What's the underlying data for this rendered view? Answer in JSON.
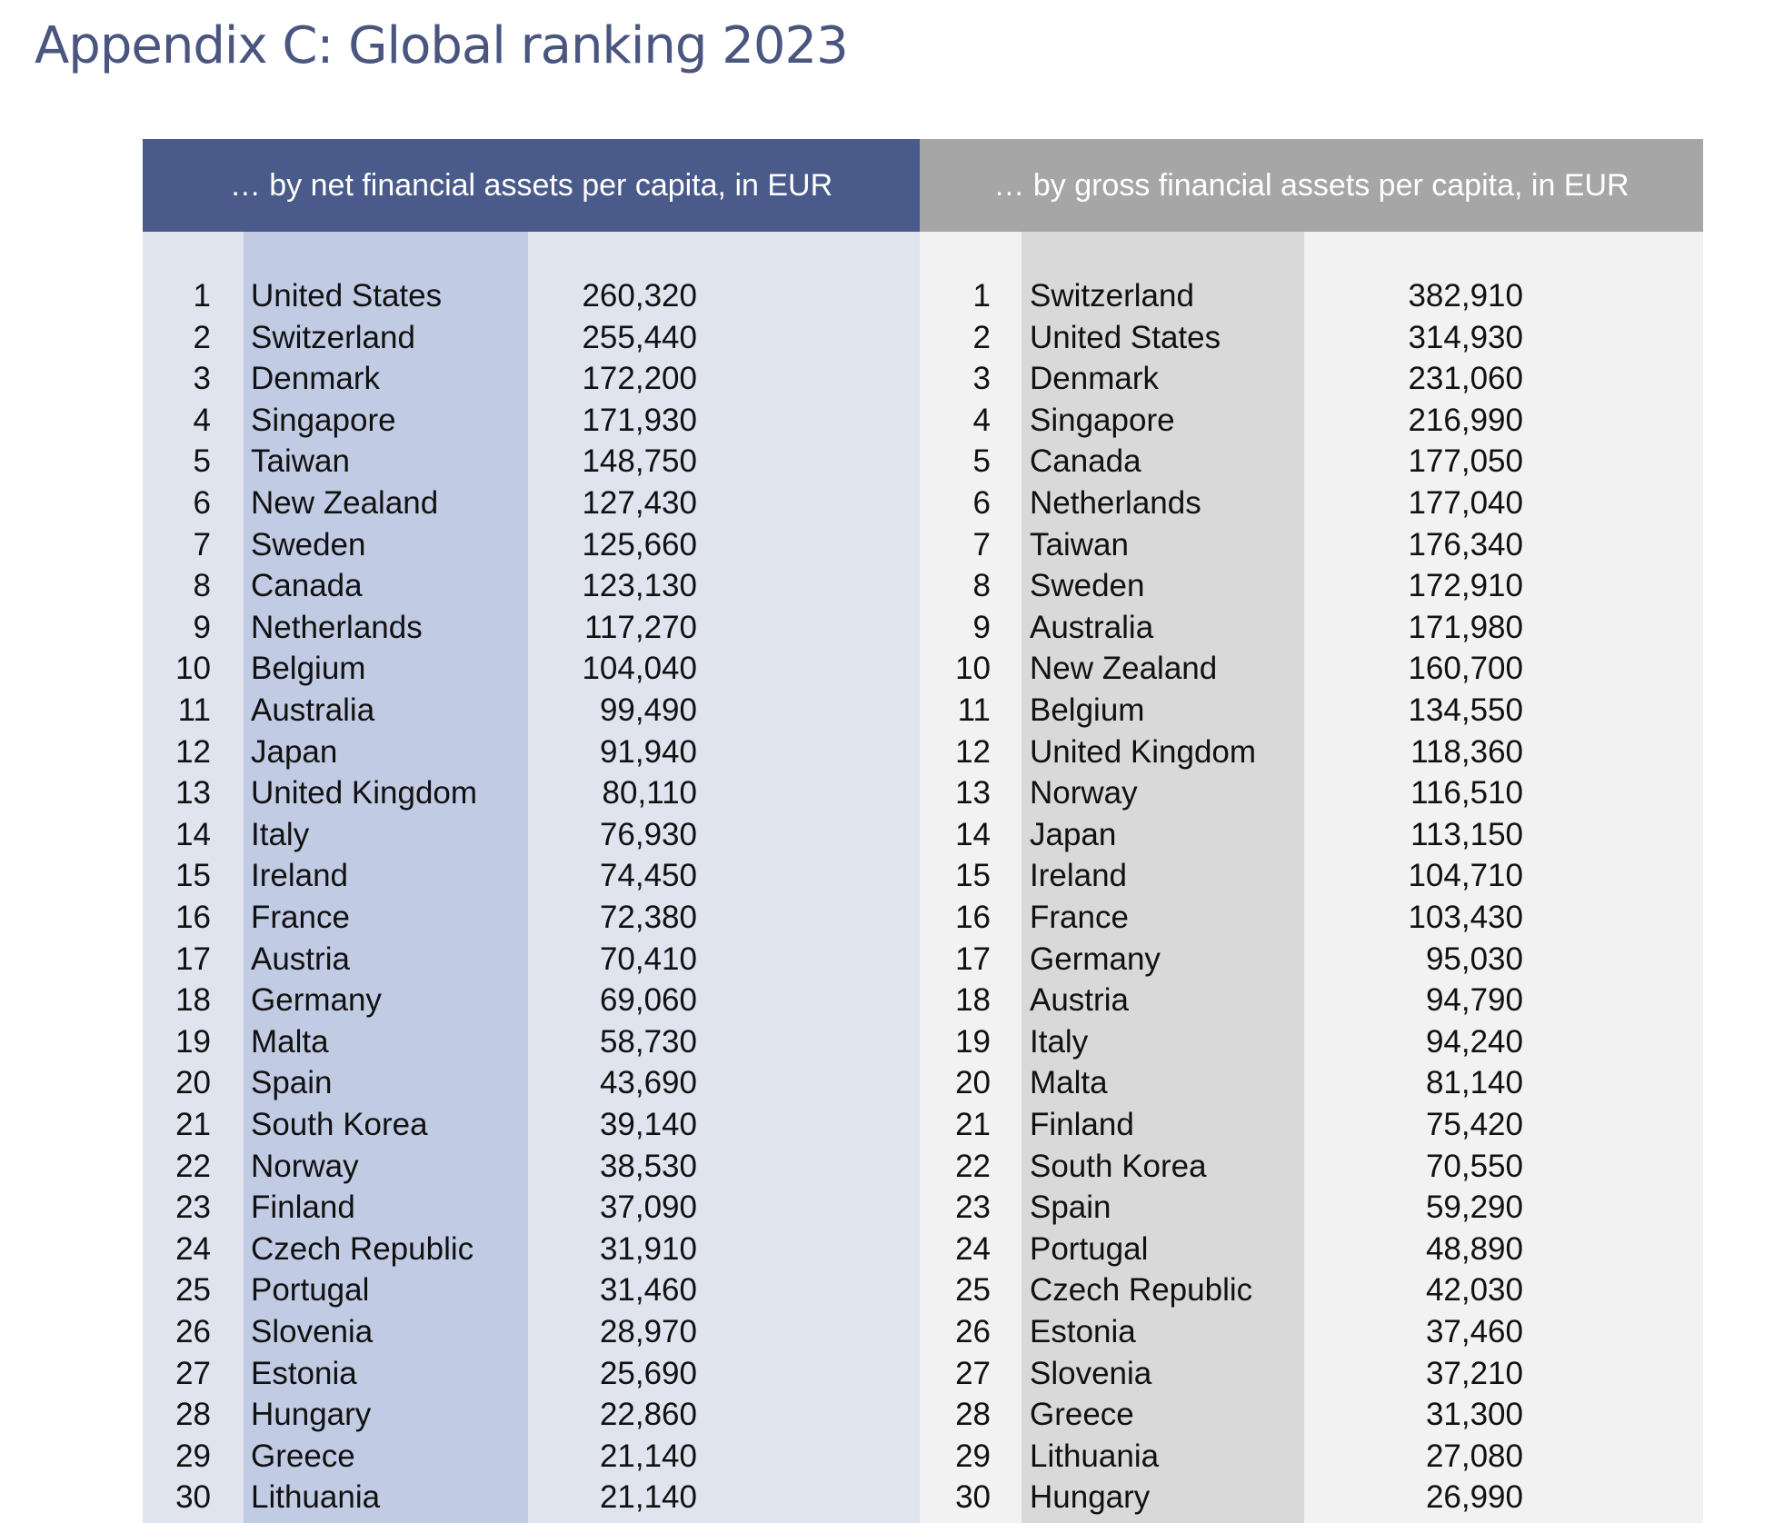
{
  "title": "Appendix C: Global ranking 2023",
  "tables": [
    {
      "header": "… by net financial assets per capita, in EUR",
      "rows": [
        [
          1,
          "United States",
          "260,320"
        ],
        [
          2,
          "Switzerland",
          "255,440"
        ],
        [
          3,
          "Denmark",
          "172,200"
        ],
        [
          4,
          "Singapore",
          "171,930"
        ],
        [
          5,
          "Taiwan",
          "148,750"
        ],
        [
          6,
          "New Zealand",
          "127,430"
        ],
        [
          7,
          "Sweden",
          "125,660"
        ],
        [
          8,
          "Canada",
          "123,130"
        ],
        [
          9,
          "Netherlands",
          "117,270"
        ],
        [
          10,
          "Belgium",
          "104,040"
        ],
        [
          11,
          "Australia",
          "99,490"
        ],
        [
          12,
          "Japan",
          "91,940"
        ],
        [
          13,
          "United Kingdom",
          "80,110"
        ],
        [
          14,
          "Italy",
          "76,930"
        ],
        [
          15,
          "Ireland",
          "74,450"
        ],
        [
          16,
          "France",
          "72,380"
        ],
        [
          17,
          "Austria",
          "70,410"
        ],
        [
          18,
          "Germany",
          "69,060"
        ],
        [
          19,
          "Malta",
          "58,730"
        ],
        [
          20,
          "Spain",
          "43,690"
        ],
        [
          21,
          "South Korea",
          "39,140"
        ],
        [
          22,
          "Norway",
          "38,530"
        ],
        [
          23,
          "Finland",
          "37,090"
        ],
        [
          24,
          "Czech Republic",
          "31,910"
        ],
        [
          25,
          "Portugal",
          "31,460"
        ],
        [
          26,
          "Slovenia",
          "28,970"
        ],
        [
          27,
          "Estonia",
          "25,690"
        ],
        [
          28,
          "Hungary",
          "22,860"
        ],
        [
          29,
          "Greece",
          "21,140"
        ],
        [
          30,
          "Lithuania",
          "21,140"
        ]
      ]
    },
    {
      "header": "… by gross financial assets per capita, in EUR",
      "rows": [
        [
          1,
          "Switzerland",
          "382,910"
        ],
        [
          2,
          "United States",
          "314,930"
        ],
        [
          3,
          "Denmark",
          "231,060"
        ],
        [
          4,
          "Singapore",
          "216,990"
        ],
        [
          5,
          "Canada",
          "177,050"
        ],
        [
          6,
          "Netherlands",
          "177,040"
        ],
        [
          7,
          "Taiwan",
          "176,340"
        ],
        [
          8,
          "Sweden",
          "172,910"
        ],
        [
          9,
          "Australia",
          "171,980"
        ],
        [
          10,
          "New Zealand",
          "160,700"
        ],
        [
          11,
          "Belgium",
          "134,550"
        ],
        [
          12,
          "United Kingdom",
          "118,360"
        ],
        [
          13,
          "Norway",
          "116,510"
        ],
        [
          14,
          "Japan",
          "113,150"
        ],
        [
          15,
          "Ireland",
          "104,710"
        ],
        [
          16,
          "France",
          "103,430"
        ],
        [
          17,
          "Germany",
          "95,030"
        ],
        [
          18,
          "Austria",
          "94,790"
        ],
        [
          19,
          "Italy",
          "94,240"
        ],
        [
          20,
          "Malta",
          "81,140"
        ],
        [
          21,
          "Finland",
          "75,420"
        ],
        [
          22,
          "South Korea",
          "70,550"
        ],
        [
          23,
          "Spain",
          "59,290"
        ],
        [
          24,
          "Portugal",
          "48,890"
        ],
        [
          25,
          "Czech Republic",
          "42,030"
        ],
        [
          26,
          "Estonia",
          "37,460"
        ],
        [
          27,
          "Slovenia",
          "37,210"
        ],
        [
          28,
          "Greece",
          "31,300"
        ],
        [
          29,
          "Lithuania",
          "27,080"
        ],
        [
          30,
          "Hungary",
          "26,990"
        ]
      ]
    }
  ]
}
